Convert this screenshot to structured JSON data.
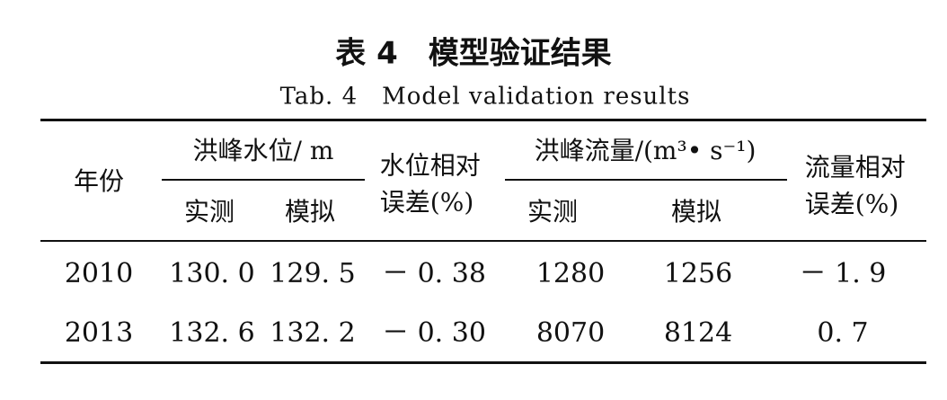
{
  "header": {
    "title": "表 4　模型验证结果",
    "subtitle": "Tab. 4　Model validation results"
  },
  "table": {
    "header": [
      "年份",
      "洪峰水位/ m",
      "水位相对误差(%)",
      "洪峰流量/(m³• s⁻¹)",
      "流量相对误差(%)"
    ],
    "subheader": [
      "实测",
      "模拟",
      "实测",
      "模拟"
    ],
    "rows": [
      [
        "2010",
        "130. 0",
        "129. 5",
        "－ 0. 38",
        "1280",
        "1256",
        "－ 1. 9"
      ],
      [
        "2013",
        "132. 6",
        "132. 2",
        "－ 0. 30",
        "8070",
        "8124",
        "0. 7"
      ]
    ]
  }
}
